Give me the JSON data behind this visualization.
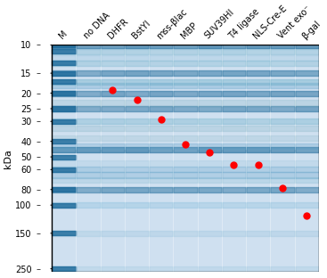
{
  "title": "",
  "ylabel_kda": "kDa",
  "lane_labels": [
    "M",
    "no DNA",
    "DHFR",
    "BstYI",
    "mss-βlac",
    "MBP",
    "SUV39HI",
    "T4 ligase",
    "NLS-Cre-E",
    "Vent exo⁻",
    "β-gal"
  ],
  "mw_ticks": [
    250,
    150,
    100,
    80,
    60,
    50,
    40,
    30,
    25,
    20,
    15,
    10
  ],
  "marker_bands_kda": [
    250,
    150,
    100,
    80,
    60,
    50,
    40,
    30,
    25,
    20,
    17,
    15,
    13,
    11,
    10
  ],
  "protein_bands": {
    "no DNA": [],
    "DHFR": [
      19.0
    ],
    "BstYI": [
      22.0
    ],
    "mss-βlac": [
      29.0
    ],
    "MBP": [
      41.5
    ],
    "SUV39HI": [
      47.0
    ],
    "T4 ligase": [
      56.0
    ],
    "NLS-Cre-E": [
      56.0
    ],
    "Vent exo⁻": [
      78.0
    ],
    "β-gal": [
      116.0
    ]
  },
  "gel_bg_color": "#cfe0f0",
  "band_color_dark": "#1a6899",
  "band_color_mid": "#5da0c8",
  "dot_color": "#ff0000",
  "fig_bg": "#ffffff",
  "border_color": "#000000",
  "label_fontsize": 7,
  "tick_fontsize": 7,
  "ylabel_fontsize": 8
}
